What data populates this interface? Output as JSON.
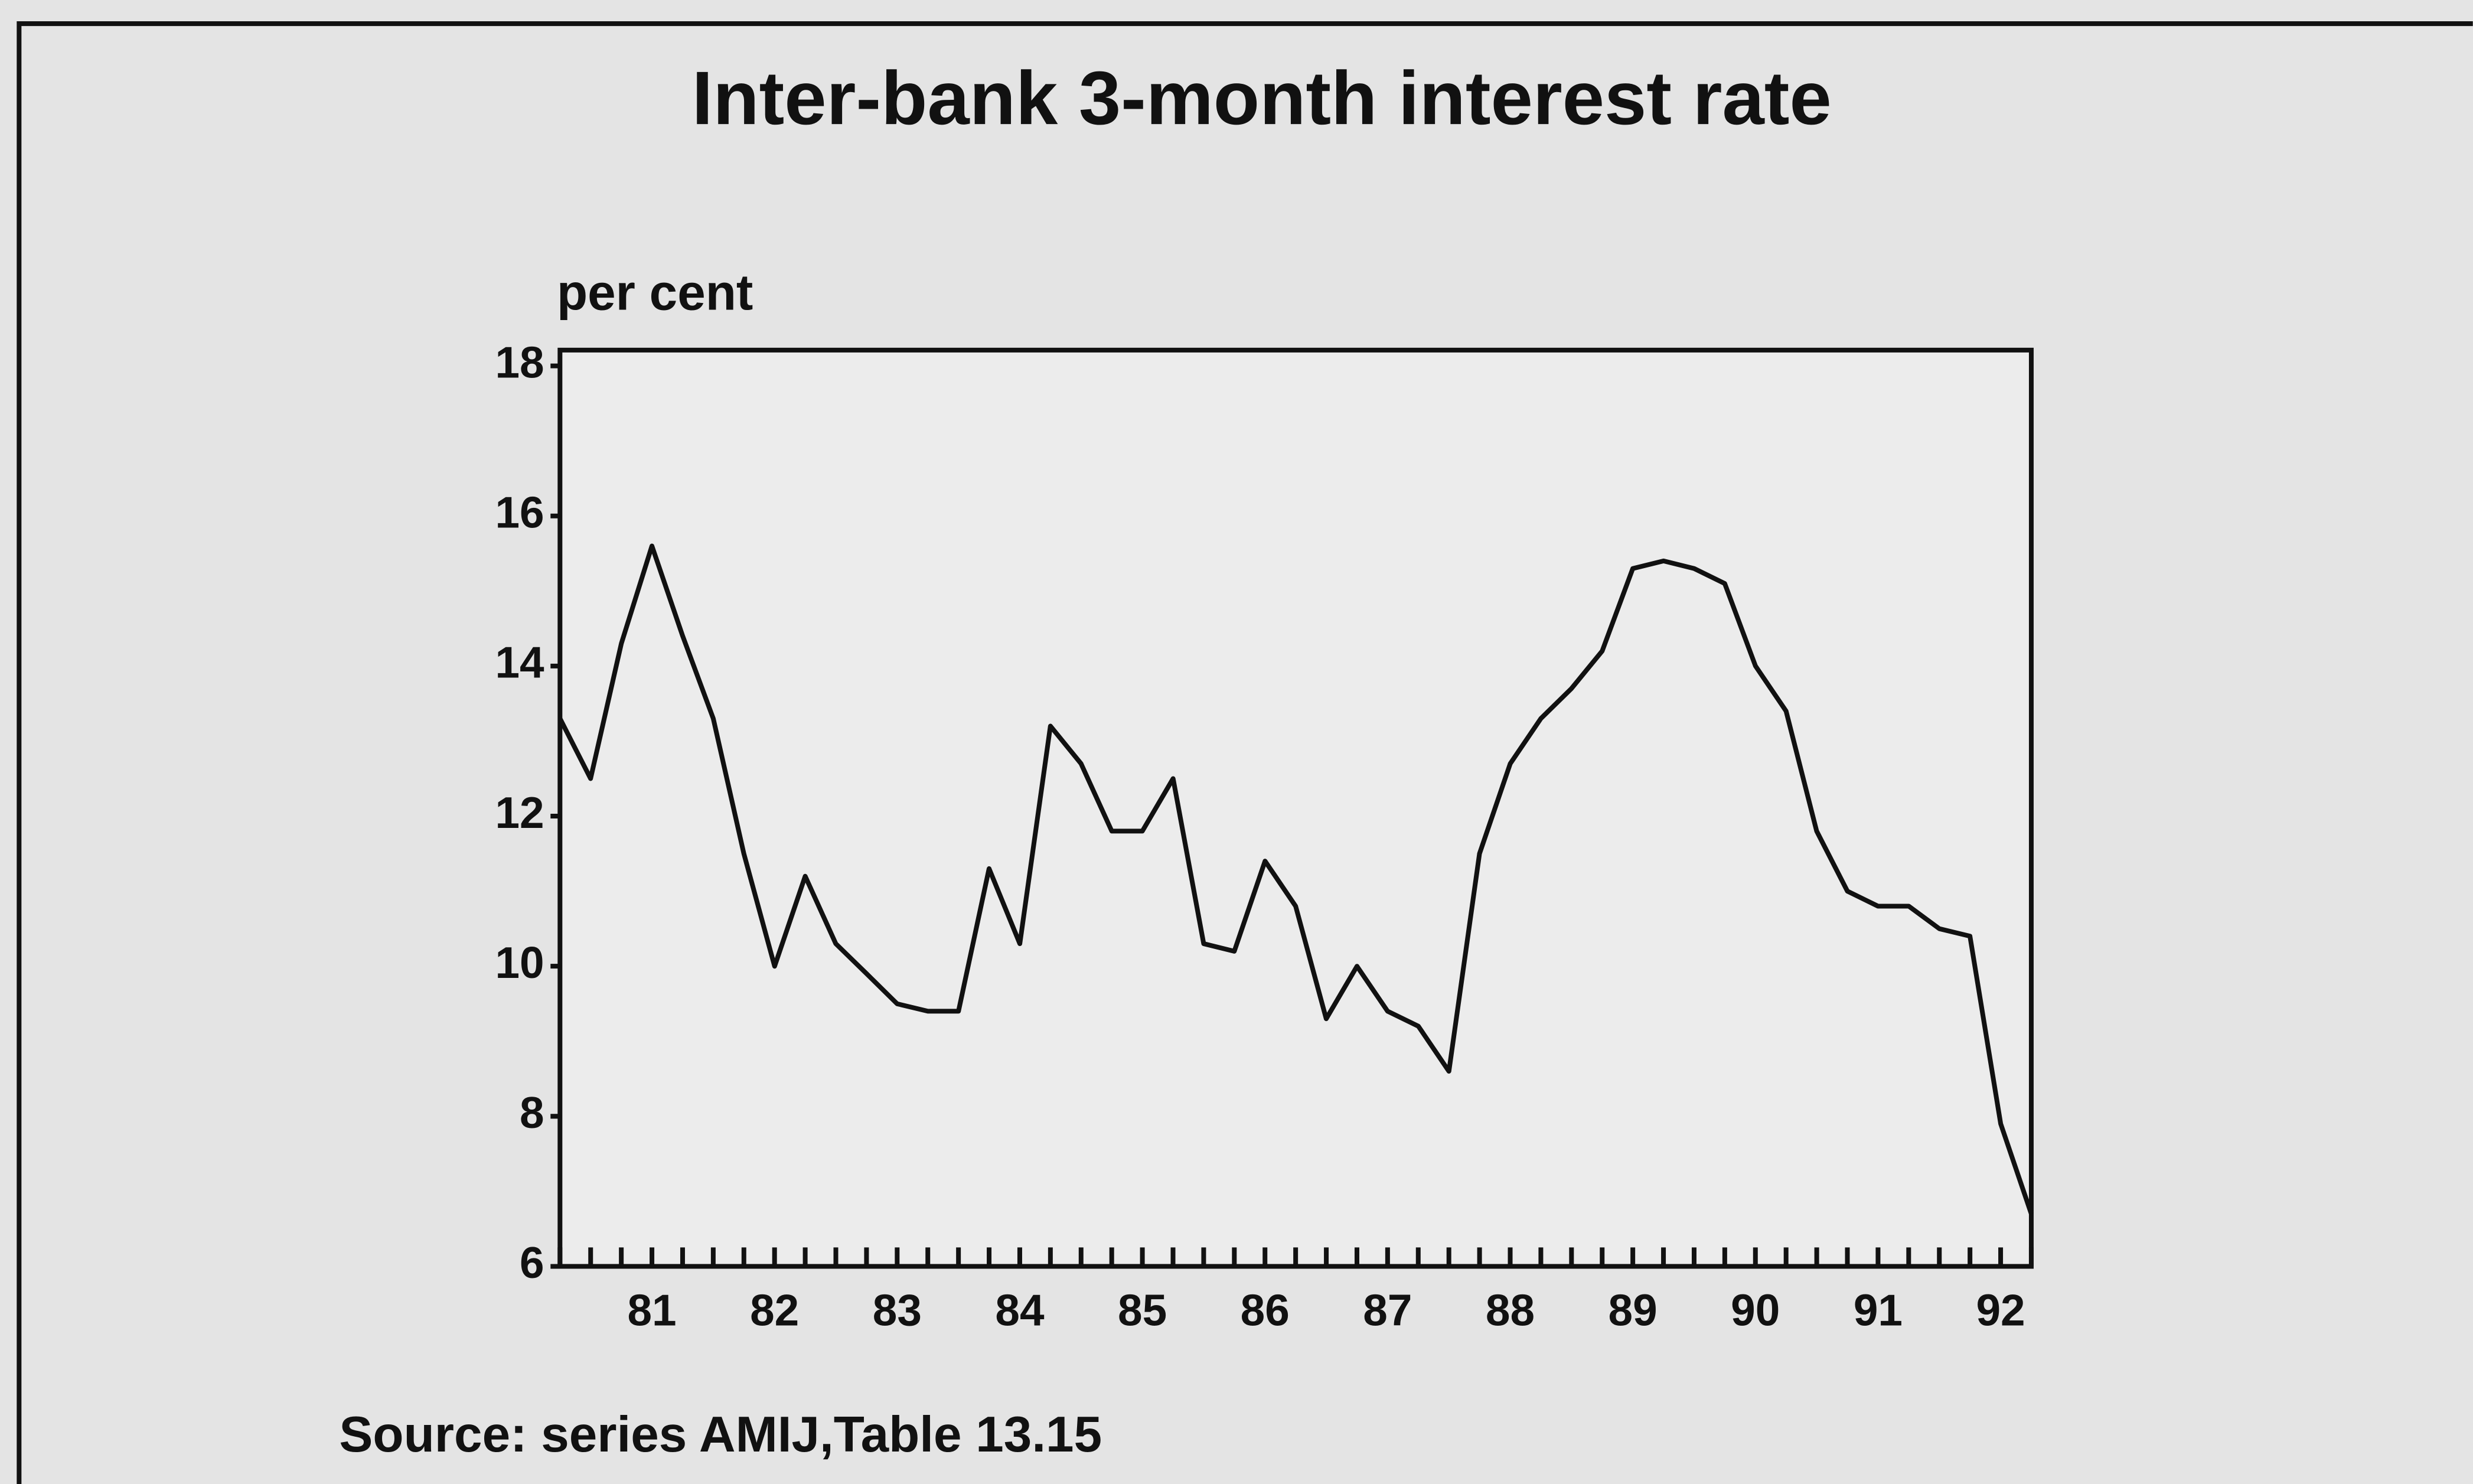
{
  "chart_data": {
    "type": "line",
    "title": "Inter-bank 3-month interest rate",
    "y_label": "per cent",
    "source": "Source: series AMIJ,Table 13.15",
    "categories": [
      null,
      null,
      null,
      "81",
      null,
      null,
      null,
      "82",
      null,
      null,
      null,
      "83",
      null,
      null,
      null,
      "84",
      null,
      null,
      null,
      "85",
      null,
      null,
      null,
      "86",
      null,
      null,
      null,
      "87",
      null,
      null,
      null,
      "88",
      null,
      null,
      null,
      "89",
      null,
      null,
      null,
      "90",
      null,
      null,
      null,
      "91",
      null,
      null,
      null,
      "92",
      null
    ],
    "series": [
      {
        "name": "Inter-bank 3-month interest rate",
        "color": "#111111",
        "values": [
          13.3,
          12.5,
          14.3,
          15.6,
          14.4,
          13.3,
          11.5,
          10.0,
          11.2,
          10.3,
          9.9,
          9.5,
          9.4,
          9.4,
          11.3,
          10.3,
          13.2,
          12.7,
          11.8,
          11.8,
          12.5,
          10.3,
          10.2,
          11.4,
          10.8,
          9.3,
          10.0,
          9.4,
          9.2,
          8.6,
          11.5,
          12.7,
          13.3,
          13.7,
          14.2,
          15.3,
          15.4,
          15.3,
          15.1,
          14.0,
          13.4,
          11.8,
          11.0,
          10.8,
          10.8,
          10.5,
          10.4,
          7.9,
          6.7
        ]
      }
    ],
    "ylim": [
      6,
      18
    ],
    "yticks": [
      6,
      8,
      10,
      12,
      14,
      16,
      18
    ],
    "grid": false
  }
}
